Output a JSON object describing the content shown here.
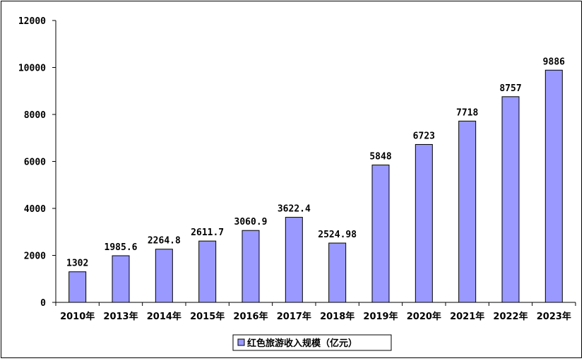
{
  "chart_data": {
    "type": "bar",
    "categories": [
      "2010年",
      "2013年",
      "2014年",
      "2015年",
      "2016年",
      "2017年",
      "2018年",
      "2019年",
      "2020年",
      "2021年",
      "2022年",
      "2023年"
    ],
    "series": [
      {
        "name": "红色旅游收入规模（亿元）",
        "values": [
          1302,
          1985.6,
          2264.8,
          2611.7,
          3060.9,
          3622.4,
          2524.98,
          5848,
          6723,
          7718,
          8757,
          9886
        ],
        "labels": [
          "1302",
          "1985.6",
          "2264.8",
          "2611.7",
          "3060.9",
          "3622.4",
          "2524.98",
          "5848",
          "6723",
          "7718",
          "8757",
          "9886"
        ]
      }
    ],
    "ylim": [
      0,
      12000
    ],
    "yticks": [
      0,
      2000,
      4000,
      6000,
      8000,
      10000,
      12000
    ],
    "ytick_labels": [
      "0",
      "2000",
      "4000",
      "6000",
      "8000",
      "10000",
      "12000"
    ],
    "grid": false,
    "legend_position": "bottom",
    "colors": {
      "bar_fill": "#9999ff",
      "bar_stroke": "#000000"
    }
  }
}
